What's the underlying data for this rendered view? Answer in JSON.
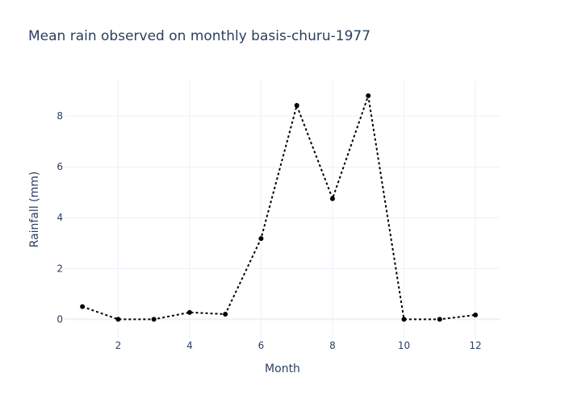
{
  "chart_data": {
    "type": "line",
    "title": "Mean rain observed on monthly basis-churu-1977",
    "xlabel": "Month",
    "ylabel": "Rainfall (mm)",
    "xlim": [
      0.5,
      12.7
    ],
    "ylim": [
      -0.75,
      9.4
    ],
    "x_ticks": [
      2,
      4,
      6,
      8,
      10,
      12
    ],
    "y_ticks": [
      0,
      2,
      4,
      6,
      8
    ],
    "grid": true,
    "mode": "lines+markers",
    "line_style": "dotted",
    "series_color": "#000000",
    "series": [
      {
        "x": [
          1,
          2,
          3,
          4,
          5,
          6,
          7,
          8,
          9,
          10,
          11,
          12
        ],
        "values": [
          0.5,
          0.0,
          0.0,
          0.27,
          0.2,
          3.18,
          8.42,
          4.75,
          8.8,
          0.0,
          0.0,
          0.17
        ]
      }
    ]
  }
}
